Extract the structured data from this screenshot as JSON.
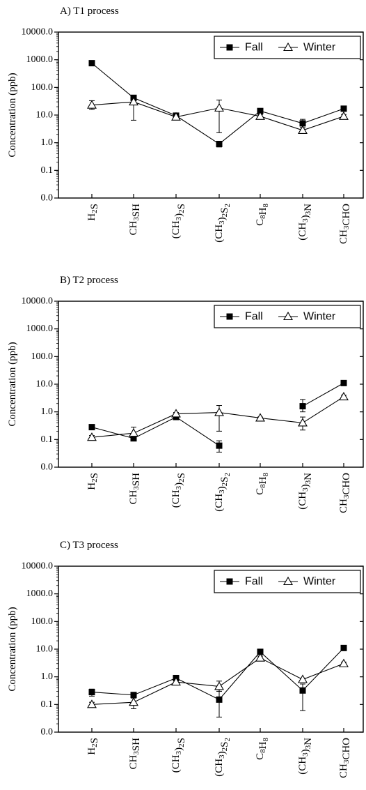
{
  "chart_data": [
    {
      "type": "line",
      "panel_title": "A) T1 process",
      "ylabel": "Concentration (ppb)",
      "yscale": "log",
      "yticks": [
        "0.0",
        "0.1",
        "1.0",
        "10.0",
        "100.0",
        "1000.0",
        "10000.0"
      ],
      "categories": [
        "H2S",
        "CH3SH",
        "(CH3)2S",
        "(CH3)2S2",
        "C8H8",
        "(CH3)3N",
        "CH3CHO"
      ],
      "legend_position": "top-right",
      "series": [
        {
          "name": "Fall",
          "marker": "filled-square",
          "values": [
            750,
            42,
            9.5,
            0.9,
            14,
            5,
            17
          ],
          "err_low": [
            600,
            35,
            8.5,
            0.7,
            12.5,
            3.5,
            14.5
          ],
          "err_high": [
            900,
            50,
            10.5,
            1.1,
            15.5,
            7,
            19.5
          ]
        },
        {
          "name": "Winter",
          "marker": "open-triangle",
          "values": [
            23,
            30,
            8.5,
            18,
            9,
            2.8,
            9
          ],
          "err_low": [
            16,
            6.5,
            7,
            2.3,
            7.5,
            2.2,
            7.5
          ],
          "err_high": [
            33,
            48,
            10,
            35,
            10.5,
            3.5,
            10.5
          ]
        }
      ]
    },
    {
      "type": "line",
      "panel_title": "B) T2 process",
      "ylabel": "Concentration (ppb)",
      "yscale": "log",
      "yticks": [
        "0.0",
        "0.1",
        "1.0",
        "10.0",
        "100.0",
        "1000.0",
        "10000.0"
      ],
      "categories": [
        "H2S",
        "CH3SH",
        "(CH3)2S",
        "(CH3)2S2",
        "C8H8",
        "(CH3)3N",
        "CH3CHO"
      ],
      "legend_position": "top-right",
      "series": [
        {
          "name": "Fall",
          "marker": "filled-square",
          "values": [
            0.28,
            0.11,
            0.65,
            0.06,
            null,
            1.6,
            11
          ],
          "err_low": [
            0.25,
            0.1,
            0.6,
            0.035,
            null,
            1.0,
            10
          ],
          "err_high": [
            0.31,
            0.12,
            0.7,
            0.09,
            null,
            2.8,
            12
          ]
        },
        {
          "name": "Winter",
          "marker": "open-triangle",
          "values": [
            0.12,
            0.17,
            0.85,
            0.95,
            0.6,
            0.4,
            3.5
          ],
          "err_low": [
            0.1,
            0.12,
            0.75,
            0.2,
            0.55,
            0.22,
            3.0
          ],
          "err_high": [
            0.14,
            0.28,
            0.95,
            1.7,
            0.65,
            0.65,
            4.0
          ]
        }
      ]
    },
    {
      "type": "line",
      "panel_title": "C) T3 process",
      "ylabel": "Concentration (ppb)",
      "yscale": "log",
      "yticks": [
        "0.0",
        "0.1",
        "1.0",
        "10.0",
        "100.0",
        "1000.0",
        "10000.0"
      ],
      "categories": [
        "H2S",
        "CH3SH",
        "(CH3)2S",
        "(CH3)2S2",
        "C8H8",
        "(CH3)3N",
        "CH3CHO"
      ],
      "legend_position": "top-right",
      "series": [
        {
          "name": "Fall",
          "marker": "filled-square",
          "values": [
            0.28,
            0.22,
            0.9,
            0.15,
            8,
            0.32,
            11
          ],
          "err_low": [
            0.2,
            0.2,
            0.8,
            0.035,
            7,
            0.06,
            10
          ],
          "err_high": [
            0.36,
            0.24,
            1.0,
            0.3,
            9,
            0.55,
            12
          ]
        },
        {
          "name": "Winter",
          "marker": "open-triangle",
          "values": [
            0.1,
            0.12,
            0.65,
            0.45,
            4.8,
            0.8,
            3.0
          ],
          "err_low": [
            0.08,
            0.07,
            0.55,
            0.3,
            4.0,
            0.7,
            2.6
          ],
          "err_high": [
            0.12,
            0.17,
            0.75,
            0.7,
            5.6,
            0.9,
            3.4
          ]
        }
      ]
    }
  ]
}
